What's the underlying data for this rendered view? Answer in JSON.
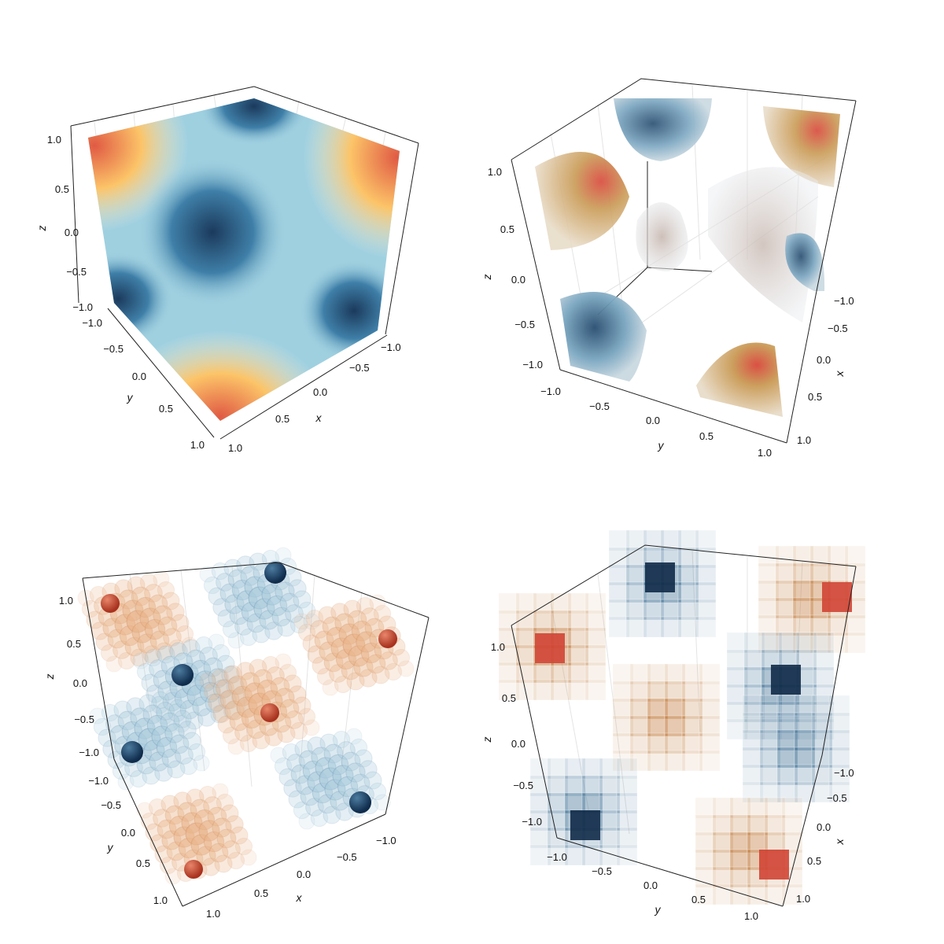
{
  "chart_data": [
    {
      "type": "volume-surface",
      "panel": "top-left",
      "axes": {
        "x": {
          "label": "x",
          "ticks": [
            "−1.0",
            "−0.5",
            "0.0",
            "0.5",
            "1.0"
          ],
          "lim": [
            -1,
            1
          ]
        },
        "y": {
          "label": "y",
          "ticks": [
            "−1.0",
            "−0.5",
            "0.0",
            "0.5",
            "1.0"
          ],
          "lim": [
            -1,
            1
          ]
        },
        "z": {
          "label": "z",
          "ticks": [
            "−1.0",
            "−0.5",
            "0.0",
            "0.5",
            "1.0"
          ],
          "lim": [
            -1,
            1
          ]
        }
      },
      "colormap": [
        "#1b3a5c",
        "#3f7fa8",
        "#9fd0e0",
        "#f6f0d8",
        "#fcc468",
        "#e05a44"
      ]
    },
    {
      "type": "volume-isosurfaces",
      "panel": "top-right",
      "axes": {
        "x": {
          "label": "x",
          "ticks": [
            "−1.0",
            "−0.5",
            "0.0",
            "0.5",
            "1.0"
          ],
          "lim": [
            -1,
            1
          ]
        },
        "y": {
          "label": "y",
          "ticks": [
            "−1.0",
            "−0.5",
            "0.0",
            "0.5",
            "1.0"
          ],
          "lim": [
            -1,
            1
          ]
        },
        "z": {
          "label": "z",
          "ticks": [
            "−1.0",
            "−0.5",
            "0.0",
            "0.5",
            "1.0"
          ],
          "lim": [
            -1,
            1
          ]
        }
      },
      "colormap": [
        "#1b3a5c",
        "#5f95b5",
        "#e6e6e6",
        "#c99a55",
        "#d8473a"
      ]
    },
    {
      "type": "scatter3d-spheres",
      "panel": "bottom-left",
      "axes": {
        "x": {
          "label": "x",
          "ticks": [
            "−1.0",
            "−0.5",
            "0.0",
            "0.5",
            "1.0"
          ],
          "lim": [
            -1,
            1
          ]
        },
        "y": {
          "label": "y",
          "ticks": [
            "−1.0",
            "−0.5",
            "0.0",
            "0.5",
            "1.0"
          ],
          "lim": [
            -1,
            1
          ]
        },
        "z": {
          "label": "z",
          "ticks": [
            "−1.0",
            "−0.5",
            "0.0",
            "0.5",
            "1.0"
          ],
          "lim": [
            -1,
            1
          ]
        }
      },
      "colormap": [
        "#15365a",
        "#a9cbdc",
        "#ffffff",
        "#e9b48a",
        "#c8402c"
      ]
    },
    {
      "type": "voxels",
      "panel": "bottom-right",
      "axes": {
        "x": {
          "label": "x",
          "ticks": [
            "−1.0",
            "−0.5",
            "0.0",
            "0.5",
            "1.0"
          ],
          "lim": [
            -1,
            1
          ]
        },
        "y": {
          "label": "y",
          "ticks": [
            "−1.0",
            "−0.5",
            "0.0",
            "0.5",
            "1.0"
          ],
          "lim": [
            -1,
            1
          ]
        },
        "z": {
          "label": "z",
          "ticks": [
            "−1.0",
            "−0.5",
            "0.0",
            "0.5",
            "1.0"
          ],
          "lim": [
            -1,
            1
          ]
        }
      },
      "colormap": [
        "#102a48",
        "#3b6d93",
        "#ffffff",
        "#c07a3c",
        "#d04434"
      ]
    }
  ]
}
